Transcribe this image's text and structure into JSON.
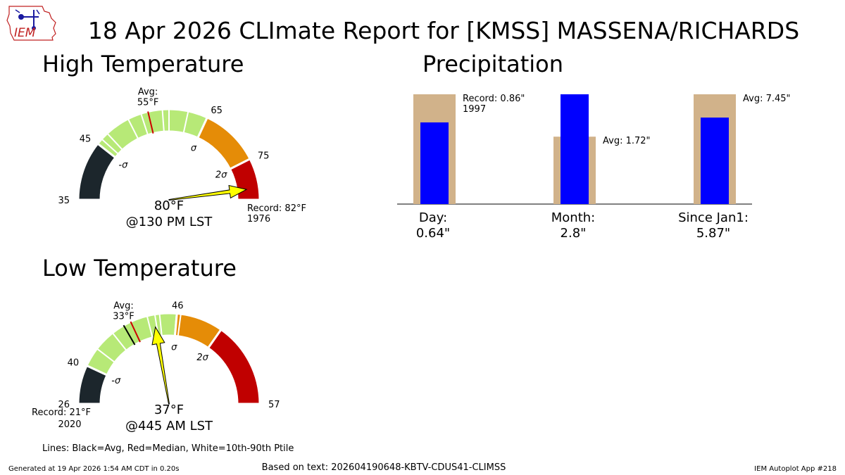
{
  "title": "18 Apr 2026 CLImate Report for [KMSS] MASSENA/RICHARDS",
  "logo": {
    "text": "IEM",
    "icon": "iowa-state-outline-logo"
  },
  "colors": {
    "dark": "#1c262c",
    "light_green": "#b7e977",
    "orange": "#e58c07",
    "red": "#c00000",
    "arrow": "#ffff00",
    "tan": "#d1b28a",
    "blue": "#0000ff",
    "median_line": "#cc0000"
  },
  "chart_data": [
    {
      "type": "gauge",
      "title": "High Temperature",
      "min": 35,
      "max": 82,
      "segments": [
        {
          "from": 35,
          "to": 45,
          "color": "#1c262c"
        },
        {
          "from": 45,
          "to": 65,
          "color": "#b7e977"
        },
        {
          "from": 65,
          "to": 75,
          "color": "#e58c07"
        },
        {
          "from": 75,
          "to": 82,
          "color": "#c00000"
        }
      ],
      "boundary_labels": [
        "35",
        "45",
        "65",
        "75"
      ],
      "sigma_labels": [
        {
          "label": "-σ",
          "value": 45
        },
        {
          "label": "σ",
          "value": 65
        },
        {
          "label": "2σ",
          "value": 75
        }
      ],
      "white_lines": [
        46,
        47.3,
        51.5,
        53.8,
        57.4,
        58.5,
        61.7
      ],
      "avg_line": 55,
      "median_line": 55,
      "avg_label": [
        "Avg:",
        "55°F"
      ],
      "record_label": [
        "Record: 82°F",
        "1976"
      ],
      "value": 80,
      "value_label": "80°F",
      "time_label": "@130 PM LST"
    },
    {
      "type": "gauge",
      "title": "Low Temperature",
      "min": 21,
      "max": 57,
      "segments": [
        {
          "from": 21,
          "to": 26,
          "color": "#1c262c"
        },
        {
          "from": 26,
          "to": 40,
          "color": "#b7e977"
        },
        {
          "from": 40,
          "to": 46,
          "color": "#e58c07"
        },
        {
          "from": 46,
          "to": 57,
          "color": "#c00000"
        }
      ],
      "boundary_labels": [
        "26",
        "40",
        "46",
        "57"
      ],
      "sigma_labels": [
        {
          "label": "-σ",
          "value": 26
        },
        {
          "label": "σ",
          "value": 40
        },
        {
          "label": "2σ",
          "value": 46
        }
      ],
      "white_lines": [
        28.5,
        31.3,
        36.2,
        37.2,
        37.8,
        40.5
      ],
      "avg_line": 33,
      "median_line": 34,
      "avg_label": [
        "Avg:",
        "33°F"
      ],
      "record_label": [
        "Record: 21°F",
        "2020"
      ],
      "value": 37,
      "value_label": "37°F",
      "time_label": "@445 AM LST"
    },
    {
      "type": "bar",
      "title": "Precipitation",
      "categories": [
        {
          "name": "Day:",
          "value_label": "0.64\""
        },
        {
          "name": "Month:",
          "value_label": "2.8\""
        },
        {
          "name": "Since Jan1:",
          "value_label": "5.87\""
        }
      ],
      "observed": [
        0.64,
        2.8,
        5.87
      ],
      "reference": [
        0.86,
        1.72,
        7.45
      ],
      "reference_labels": [
        [
          "Record: 0.86\"",
          "1997"
        ],
        [
          "Avg: 1.72\""
        ],
        [
          "Avg: 7.45\""
        ]
      ],
      "observed_fraction_of_max": [
        0.744,
        1.0,
        0.788
      ],
      "reference_fraction_of_max": [
        1.0,
        0.614,
        1.0
      ]
    }
  ],
  "legend_note": "Lines: Black=Avg, Red=Median, White=10th-90th Ptile",
  "footer": {
    "generated": "Generated at 19 Apr 2026 1:54 AM CDT in 0.20s",
    "based_on": "Based on text: 202604190648-KBTV-CDUS41-CLIMSS",
    "app": "IEM Autoplot App #218"
  }
}
